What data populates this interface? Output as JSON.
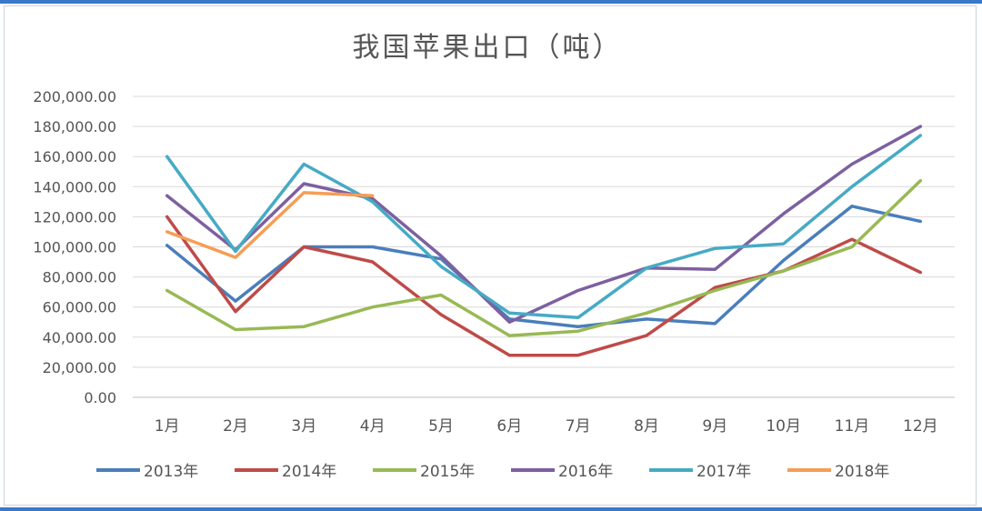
{
  "chart_data": {
    "type": "line",
    "title": "我国苹果出口（吨）",
    "xlabel": "",
    "ylabel": "",
    "categories": [
      "1月",
      "2月",
      "3月",
      "4月",
      "5月",
      "6月",
      "7月",
      "8月",
      "9月",
      "10月",
      "11月",
      "12月"
    ],
    "y_ticks": [
      "0.00",
      "20,000.00",
      "40,000.00",
      "60,000.00",
      "80,000.00",
      "100,000.00",
      "120,000.00",
      "140,000.00",
      "160,000.00",
      "180,000.00",
      "200,000.00"
    ],
    "ylim": [
      0,
      200000
    ],
    "grid": true,
    "legend_position": "bottom",
    "series": [
      {
        "name": "2013年",
        "color": "#4a7ebb",
        "values": [
          101000,
          64000,
          100000,
          100000,
          92000,
          52000,
          47000,
          52000,
          49000,
          91000,
          127000,
          117000
        ]
      },
      {
        "name": "2014年",
        "color": "#be4b48",
        "values": [
          120000,
          57000,
          100000,
          90000,
          55000,
          28000,
          28000,
          41000,
          73000,
          84000,
          105000,
          83000
        ]
      },
      {
        "name": "2015年",
        "color": "#98b954",
        "values": [
          71000,
          45000,
          47000,
          60000,
          68000,
          41000,
          44000,
          56000,
          71000,
          84000,
          100000,
          144000
        ]
      },
      {
        "name": "2016年",
        "color": "#7d60a0",
        "values": [
          134000,
          98000,
          142000,
          132000,
          94000,
          50000,
          71000,
          86000,
          85000,
          122000,
          155000,
          180000
        ]
      },
      {
        "name": "2017年",
        "color": "#46aac5",
        "values": [
          160000,
          97000,
          155000,
          130000,
          87000,
          56000,
          53000,
          86000,
          99000,
          102000,
          140000,
          174000
        ]
      },
      {
        "name": "2018年",
        "color": "#f59d56",
        "values": [
          110000,
          93000,
          136000,
          134000,
          null,
          null,
          null,
          null,
          null,
          null,
          null,
          null
        ]
      }
    ]
  }
}
